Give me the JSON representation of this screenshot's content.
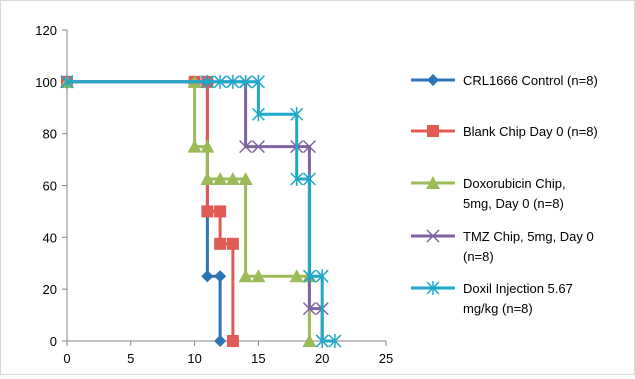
{
  "chart_data": {
    "type": "line",
    "title": "",
    "xlabel": "",
    "ylabel": "",
    "xlim": [
      0,
      25
    ],
    "ylim": [
      0,
      120
    ],
    "x_ticks": [
      "0",
      "5",
      "10",
      "15",
      "20",
      "25"
    ],
    "y_ticks": [
      "0",
      "20",
      "40",
      "60",
      "80",
      "100",
      "120"
    ],
    "grid": false,
    "legend_position": "right",
    "series": [
      {
        "name": "CRL1666 Control (n=8)",
        "legend_lines": [
          "CRL1666 Control (n=8)"
        ],
        "color": "#2e75b6",
        "marker": "diamond",
        "x": [
          0,
          11,
          11,
          11,
          11,
          12,
          12
        ],
        "y": [
          100,
          100,
          50,
          25,
          25,
          25,
          0
        ]
      },
      {
        "name": "Blank Chip Day 0 (n=8)",
        "legend_lines": [
          "Blank Chip Day 0 (n=8)"
        ],
        "color": "#e15b55",
        "marker": "square",
        "x": [
          0,
          10,
          11,
          11,
          12,
          12,
          13,
          13
        ],
        "y": [
          100,
          100,
          100,
          50,
          50,
          37.5,
          37.5,
          0
        ]
      },
      {
        "name": "Doxorubicin Chip, 5mg, Day 0 (n=8)",
        "legend_lines": [
          "Doxorubicin Chip,",
          "5mg, Day 0 (n=8)"
        ],
        "color": "#9bbb59",
        "marker": "triangle",
        "x": [
          0,
          10,
          10,
          11,
          11,
          12,
          13,
          14,
          14,
          15,
          18,
          19,
          19
        ],
        "y": [
          100,
          100,
          75,
          75,
          62.5,
          62.5,
          62.5,
          62.5,
          25,
          25,
          25,
          25,
          0
        ]
      },
      {
        "name": "TMZ Chip, 5mg, Day 0 (n=8)",
        "legend_lines": [
          "TMZ Chip, 5mg, Day 0",
          "(n=8)"
        ],
        "color": "#8064a2",
        "marker": "x",
        "x": [
          0,
          11,
          14,
          14,
          15,
          18,
          19,
          19,
          20,
          20
        ],
        "y": [
          100,
          100,
          100,
          75,
          75,
          75,
          75,
          12.5,
          12.5,
          0
        ]
      },
      {
        "name": "Doxil Injection 5.67 mg/kg (n=8)",
        "legend_lines": [
          "Doxil Injection 5.67",
          "mg/kg (n=8)"
        ],
        "color": "#1fa8c9",
        "marker": "star",
        "x": [
          0,
          11,
          12,
          13,
          14,
          15,
          15,
          18,
          18,
          19,
          19,
          20,
          20,
          21
        ],
        "y": [
          100,
          100,
          100,
          100,
          100,
          100,
          87.5,
          87.5,
          62.5,
          62.5,
          25,
          25,
          0,
          0
        ]
      }
    ]
  }
}
